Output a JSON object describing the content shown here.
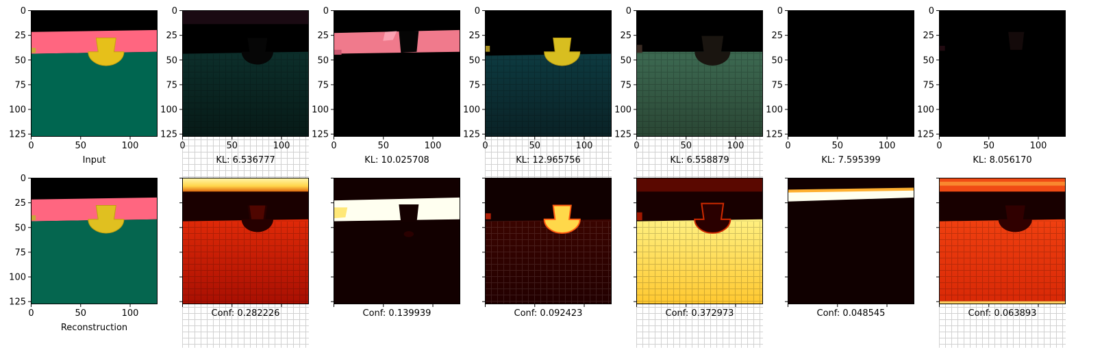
{
  "figure": {
    "top_row": {
      "captions": [
        "Input",
        "KL: 6.536777",
        "KL: 10.025708",
        "KL: 12.965756",
        "KL: 6.558879",
        "KL: 7.595399",
        "KL: 8.056170"
      ]
    },
    "bottom_row": {
      "captions": [
        "Reconstruction",
        "Conf: 0.282226",
        "Conf: 0.139939",
        "Conf: 0.092423",
        "Conf: 0.372973",
        "Conf: 0.048545",
        "Conf: 0.063893"
      ]
    }
  },
  "chart_data": {
    "type": "heatmap",
    "layout": "2 rows x 7 image panels",
    "image_size": [
      128,
      128
    ],
    "x_ticks": [
      0,
      50,
      100
    ],
    "y_ticks": [
      0,
      25,
      50,
      75,
      100,
      125
    ],
    "xlim": [
      0,
      128
    ],
    "ylim": [
      128,
      0
    ],
    "top_panels": [
      {
        "caption": "Input"
      },
      {
        "caption": "KL: 6.536777",
        "kl": 6.536777
      },
      {
        "caption": "KL: 10.025708",
        "kl": 10.025708
      },
      {
        "caption": "KL: 12.965756",
        "kl": 12.965756
      },
      {
        "caption": "KL: 6.558879",
        "kl": 6.558879
      },
      {
        "caption": "KL: 7.595399",
        "kl": 7.595399
      },
      {
        "caption": "KL: 8.056170",
        "kl": 8.05617
      }
    ],
    "bottom_panels": [
      {
        "caption": "Reconstruction"
      },
      {
        "caption": "Conf: 0.282226",
        "conf": 0.282226
      },
      {
        "caption": "Conf: 0.139939",
        "conf": 0.139939
      },
      {
        "caption": "Conf: 0.092423",
        "conf": 0.092423
      },
      {
        "caption": "Conf: 0.372973",
        "conf": 0.372973
      },
      {
        "caption": "Conf: 0.048545",
        "conf": 0.048545
      },
      {
        "caption": "Conf: 0.063893",
        "conf": 0.063893
      }
    ],
    "colors": {
      "background": "#000000",
      "band_pink": "#ff6680",
      "cup_yellow": "#e6c01a",
      "floor_green": "#006650",
      "heat_black": "#1a0000",
      "heat_red": "#cc1400",
      "heat_yellow": "#ffee44",
      "heat_white": "#fffff0"
    }
  }
}
